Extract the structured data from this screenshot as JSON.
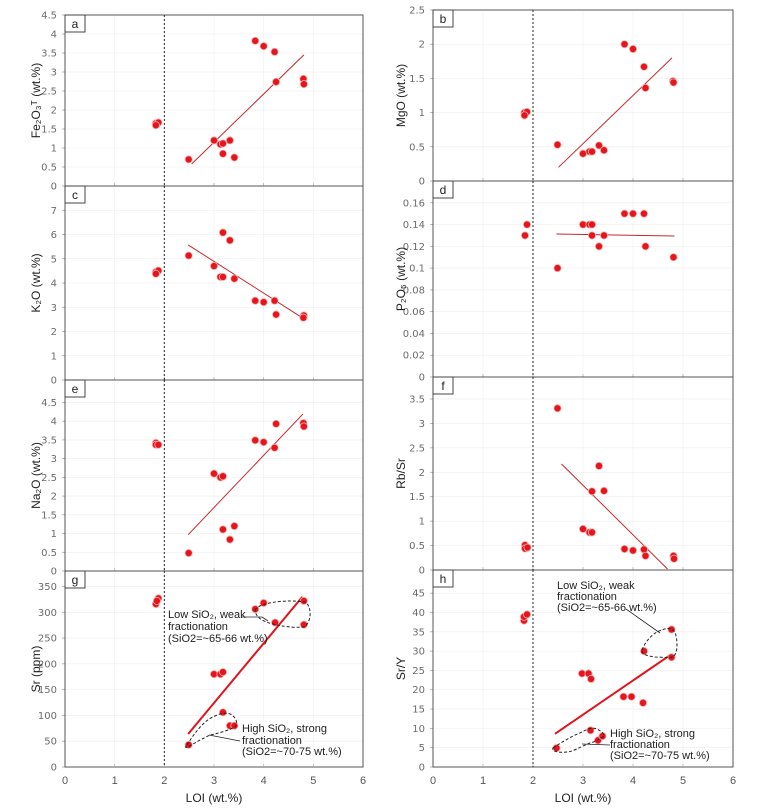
{
  "chart_data": [
    {
      "id": "a",
      "type": "scatter",
      "panel_label": "a",
      "ylabel": "Fe₂O₃ᵀ (wt.%)",
      "xlabel": "LOI (wt.%)",
      "xlim": [
        0,
        6
      ],
      "ylim": [
        0,
        4.5
      ],
      "yticks": [
        "0",
        "0.5",
        "1",
        "1.5",
        "2",
        "2.5",
        "3",
        "3.5",
        "4",
        "4.5"
      ],
      "points": [
        [
          1.83,
          1.65
        ],
        [
          1.88,
          1.67
        ],
        [
          1.83,
          1.6
        ],
        [
          2.49,
          0.7
        ],
        [
          3.0,
          1.2
        ],
        [
          3.13,
          1.1
        ],
        [
          3.18,
          1.12
        ],
        [
          3.18,
          0.85
        ],
        [
          3.32,
          1.2
        ],
        [
          3.41,
          0.75
        ],
        [
          3.83,
          3.82
        ],
        [
          4.0,
          3.68
        ],
        [
          4.22,
          3.53
        ],
        [
          4.25,
          2.74
        ],
        [
          4.8,
          2.82
        ],
        [
          4.81,
          2.68
        ]
      ],
      "trend": [
        [
          2.55,
          0.58
        ],
        [
          4.81,
          3.45
        ]
      ]
    },
    {
      "id": "b",
      "type": "scatter",
      "panel_label": "b",
      "ylabel": "MgO (wt.%)",
      "xlabel": "LOI (wt.%)",
      "xlim": [
        0,
        6
      ],
      "ylim": [
        0,
        2.5
      ],
      "yticks": [
        "0",
        "0.5",
        "1",
        "1.5",
        "2",
        "2.5"
      ],
      "points": [
        [
          1.83,
          1.0
        ],
        [
          1.88,
          1.01
        ],
        [
          1.83,
          0.96
        ],
        [
          2.49,
          0.53
        ],
        [
          3.0,
          0.4
        ],
        [
          3.13,
          0.43
        ],
        [
          3.18,
          0.43
        ],
        [
          3.32,
          0.52
        ],
        [
          3.42,
          0.45
        ],
        [
          3.83,
          2.0
        ],
        [
          4.0,
          1.93
        ],
        [
          4.22,
          1.67
        ],
        [
          4.25,
          1.36
        ],
        [
          4.8,
          1.46
        ],
        [
          4.81,
          1.44
        ]
      ],
      "trend": [
        [
          2.51,
          0.2
        ],
        [
          4.78,
          1.8
        ]
      ]
    },
    {
      "id": "c",
      "type": "scatter",
      "panel_label": "c",
      "ylabel": "K₂O (wt.%)",
      "xlabel": "LOI (wt.%)",
      "xlim": [
        0,
        6
      ],
      "ylim": [
        0,
        8
      ],
      "yticks": [
        "0",
        "1",
        "2",
        "3",
        "4",
        "5",
        "6",
        "7"
      ],
      "points": [
        [
          1.83,
          4.46
        ],
        [
          1.88,
          4.51
        ],
        [
          1.83,
          4.38
        ],
        [
          2.49,
          5.13
        ],
        [
          3.0,
          4.7
        ],
        [
          3.13,
          4.25
        ],
        [
          3.18,
          4.25
        ],
        [
          3.18,
          6.08
        ],
        [
          3.32,
          5.76
        ],
        [
          3.41,
          4.18
        ],
        [
          3.83,
          3.27
        ],
        [
          4.0,
          3.21
        ],
        [
          4.22,
          3.27
        ],
        [
          4.25,
          2.7
        ],
        [
          4.81,
          2.66
        ],
        [
          4.8,
          2.57
        ]
      ],
      "trend": [
        [
          2.48,
          5.57
        ],
        [
          4.79,
          2.55
        ]
      ]
    },
    {
      "id": "d",
      "type": "scatter",
      "panel_label": "d",
      "ylabel": "P₂O₅ (wt.%)",
      "xlabel": "LOI (wt.%)",
      "xlim": [
        0,
        6
      ],
      "ylim": [
        0,
        0.18
      ],
      "yticks": [
        "0",
        "0.02",
        "0.04",
        "0.06",
        "0.08",
        "0.1",
        "0.12",
        "0.14",
        "0.16"
      ],
      "points": [
        [
          1.84,
          0.13
        ],
        [
          1.88,
          0.14
        ],
        [
          2.49,
          0.1
        ],
        [
          3.0,
          0.14
        ],
        [
          3.13,
          0.14
        ],
        [
          3.18,
          0.14
        ],
        [
          3.18,
          0.13
        ],
        [
          3.32,
          0.12
        ],
        [
          3.42,
          0.13
        ],
        [
          3.83,
          0.15
        ],
        [
          4.0,
          0.15
        ],
        [
          4.22,
          0.15
        ],
        [
          4.25,
          0.12
        ],
        [
          4.81,
          0.11
        ]
      ],
      "trend": [
        [
          2.47,
          0.1313
        ],
        [
          4.83,
          0.1295
        ]
      ]
    },
    {
      "id": "e",
      "type": "scatter",
      "panel_label": "e",
      "ylabel": "Na₂O (wt.%)",
      "xlabel": "LOI (wt.%)",
      "xlim": [
        0,
        6
      ],
      "ylim": [
        0,
        5.1
      ],
      "yticks": [
        "0",
        "0.5",
        "1",
        "1.5",
        "2",
        "2.5",
        "3",
        "3.5",
        "4",
        "4.5"
      ],
      "points": [
        [
          1.83,
          3.42
        ],
        [
          1.83,
          3.37
        ],
        [
          1.88,
          3.37
        ],
        [
          2.49,
          0.48
        ],
        [
          3.0,
          2.6
        ],
        [
          3.13,
          2.5
        ],
        [
          3.18,
          2.53
        ],
        [
          3.18,
          1.11
        ],
        [
          3.41,
          1.2
        ],
        [
          3.32,
          0.84
        ],
        [
          3.83,
          3.49
        ],
        [
          4.0,
          3.44
        ],
        [
          4.25,
          3.93
        ],
        [
          4.22,
          3.29
        ],
        [
          4.8,
          3.95
        ],
        [
          4.81,
          3.86
        ]
      ],
      "trend": [
        [
          2.48,
          0.97
        ],
        [
          4.79,
          4.19
        ]
      ]
    },
    {
      "id": "f",
      "type": "scatter",
      "panel_label": "f",
      "ylabel": "Rb/Sr",
      "xlabel": "LOI (wt.%)",
      "xlim": [
        0,
        6
      ],
      "ylim": [
        0,
        3.95
      ],
      "yticks": [
        "0",
        "0.5",
        "1",
        "1.5",
        "2",
        "2.5",
        "3",
        "3.5"
      ],
      "points": [
        [
          1.84,
          0.51
        ],
        [
          1.84,
          0.44
        ],
        [
          1.89,
          0.46
        ],
        [
          2.49,
          3.31
        ],
        [
          3.0,
          0.84
        ],
        [
          3.13,
          0.77
        ],
        [
          3.18,
          0.77
        ],
        [
          3.18,
          1.61
        ],
        [
          3.32,
          2.13
        ],
        [
          3.42,
          1.62
        ],
        [
          3.83,
          0.43
        ],
        [
          4.0,
          0.4
        ],
        [
          4.22,
          0.42
        ],
        [
          4.25,
          0.29
        ],
        [
          4.81,
          0.29
        ],
        [
          4.82,
          0.23
        ]
      ],
      "trend": [
        [
          2.57,
          2.17
        ],
        [
          4.69,
          0.02
        ]
      ]
    },
    {
      "id": "g",
      "type": "scatter",
      "panel_label": "g",
      "ylabel": "Sr (ppm)",
      "xlabel": "LOI (wt.%)",
      "xlim": [
        0,
        6
      ],
      "ylim": [
        0,
        380
      ],
      "yticks": [
        "0",
        "50",
        "100",
        "150",
        "200",
        "250",
        "300",
        "350"
      ],
      "xticks": [
        "0",
        "1",
        "2",
        "3",
        "4",
        "5",
        "6"
      ],
      "points": [
        [
          1.83,
          316
        ],
        [
          1.88,
          327
        ],
        [
          1.85,
          322
        ],
        [
          2.49,
          43
        ],
        [
          3.0,
          180
        ],
        [
          3.13,
          180
        ],
        [
          3.18,
          184
        ],
        [
          3.18,
          106
        ],
        [
          3.32,
          80
        ],
        [
          3.41,
          80
        ],
        [
          3.83,
          306
        ],
        [
          4.0,
          318
        ],
        [
          4.23,
          280
        ],
        [
          4.81,
          322
        ],
        [
          4.81,
          276
        ]
      ],
      "trend": [
        [
          2.48,
          64
        ],
        [
          4.78,
          330
        ]
      ],
      "annotations": {
        "low": [
          "Low SiO₂, weak",
          "fractionation",
          "(SiO2=~65-66 wt.%)"
        ],
        "high": [
          "High SiO₂, strong",
          "fractionation",
          "(SiO2=~70-75 wt.%)"
        ]
      }
    },
    {
      "id": "h",
      "type": "scatter",
      "panel_label": "h",
      "ylabel": "Sr/Y",
      "xlabel": "LOI (wt.%)",
      "xlim": [
        0,
        6
      ],
      "ylim": [
        0,
        51
      ],
      "yticks": [
        "0",
        "5",
        "10",
        "15",
        "20",
        "25",
        "30",
        "35",
        "40",
        "45"
      ],
      "xticks": [
        "0",
        "1",
        "2",
        "3",
        "4",
        "5",
        "6"
      ],
      "points": [
        [
          1.82,
          37.9
        ],
        [
          1.82,
          38.9
        ],
        [
          1.88,
          39.5
        ],
        [
          2.47,
          4.9
        ],
        [
          2.98,
          24.2
        ],
        [
          3.11,
          24.2
        ],
        [
          3.16,
          22.8
        ],
        [
          3.15,
          9.5
        ],
        [
          3.3,
          6.9
        ],
        [
          3.39,
          8.0
        ],
        [
          3.81,
          18.2
        ],
        [
          3.97,
          18.2
        ],
        [
          4.2,
          16.6
        ],
        [
          4.22,
          30.0
        ],
        [
          4.77,
          35.6
        ],
        [
          4.77,
          28.4
        ]
      ],
      "trend": [
        [
          2.44,
          8.6
        ],
        [
          4.77,
          29.2
        ]
      ],
      "annotations": {
        "low": [
          "Low SiO₂, weak",
          "fractionation",
          "(SiO2=~65-66 wt.%)"
        ],
        "high": [
          "High SiO₂, strong",
          "fractionation",
          "(SiO2=~70-75 wt.%)"
        ]
      }
    }
  ],
  "colors": {
    "point": "#e8141c",
    "trend": "#c8282a",
    "frame": "#555555",
    "grid": "#eeeeee"
  },
  "reference_line_loi": 2
}
